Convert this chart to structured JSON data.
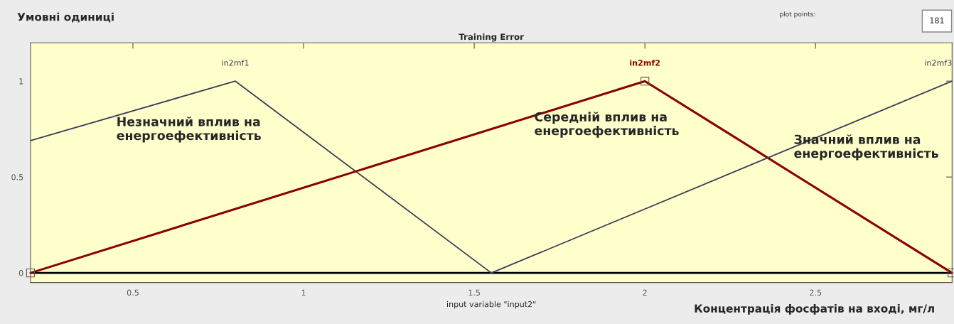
{
  "chart_data": {
    "type": "line",
    "title": "Training Error",
    "xlabel": "input variable \"input2\"",
    "xlim": [
      0.2,
      2.9
    ],
    "ylim": [
      -0.05,
      1.2
    ],
    "xticks": [
      0.5,
      1,
      1.5,
      2,
      2.5
    ],
    "yticks": [
      0,
      0.5,
      1
    ],
    "grid": false,
    "marker": "none",
    "line_style": "solid",
    "series": [
      {
        "name": "in2mf1",
        "color": "#3c3c5a",
        "x": [
          0.2,
          0.8,
          1.55
        ],
        "values": [
          0.69,
          1,
          0
        ]
      },
      {
        "name": "in2mf2",
        "color": "#8b0000",
        "x": [
          0.2,
          2,
          2.9
        ],
        "values": [
          0,
          1,
          0
        ],
        "marker": "square"
      },
      {
        "name": "in2mf3",
        "color": "#3c3c5a",
        "x": [
          1.55,
          2.9
        ],
        "values": [
          0,
          1
        ]
      }
    ],
    "ref_lines": [
      {
        "axis": "y",
        "value": 0,
        "color": "#000000"
      }
    ],
    "annotations": [
      "Умовні одиниці",
      "plot points:",
      "181",
      "Концентрація фосфатів на вході, мг/л",
      "Незначний вплив на\nенергоефективність",
      "Середній вплив на\nенергоефективність",
      "Значний вплив на\nенергоефективність"
    ]
  }
}
